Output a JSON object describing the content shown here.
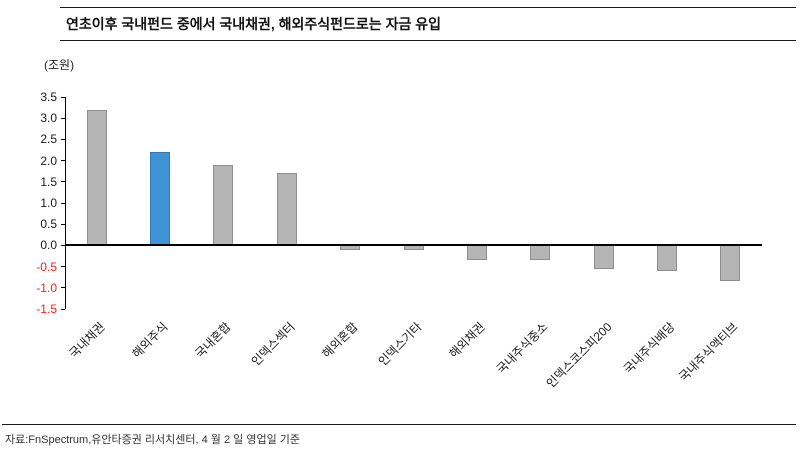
{
  "title": "연초이후 국내펀드 중에서 국내채권, 해외주식펀드로는 자금 유입",
  "unit_label": "(조원)",
  "source": "자료:FnSpectrum,유안타증권 리서치센터, 4 월 2 일 영업일 기준",
  "colors": {
    "bar_fill": "#b5b5b5",
    "bar_border": "#8e8e8e",
    "highlight_fill": "#3e94d4",
    "highlight_border": "#2e7ab4",
    "negative_tick": "#ff1a1a",
    "axis": "#000000"
  },
  "chart_data": {
    "type": "bar",
    "title": "연초이후 국내펀드 중에서 국내채권, 해외주식펀드로는 자금 유입",
    "xlabel": "",
    "ylabel": "(조원)",
    "categories": [
      "국내채권",
      "해외주식",
      "국내혼합",
      "인덱스섹터",
      "해외혼합",
      "인덱스기타",
      "해외채권",
      "국내주식중소",
      "인덱스코스피200",
      "국내주식배당",
      "국내주식액티브"
    ],
    "values": [
      3.2,
      2.2,
      1.9,
      1.7,
      -0.1,
      -0.1,
      -0.35,
      -0.35,
      -0.55,
      -0.6,
      -0.85
    ],
    "highlight_index": 1,
    "highlight_category": "해외주식",
    "ylim": [
      -1.5,
      3.5
    ],
    "yticks": [
      3.5,
      3.0,
      2.5,
      2.0,
      1.5,
      1.0,
      0.5,
      0.0,
      -0.5,
      -1.0,
      -1.5
    ],
    "grid": false,
    "legend": "none"
  }
}
